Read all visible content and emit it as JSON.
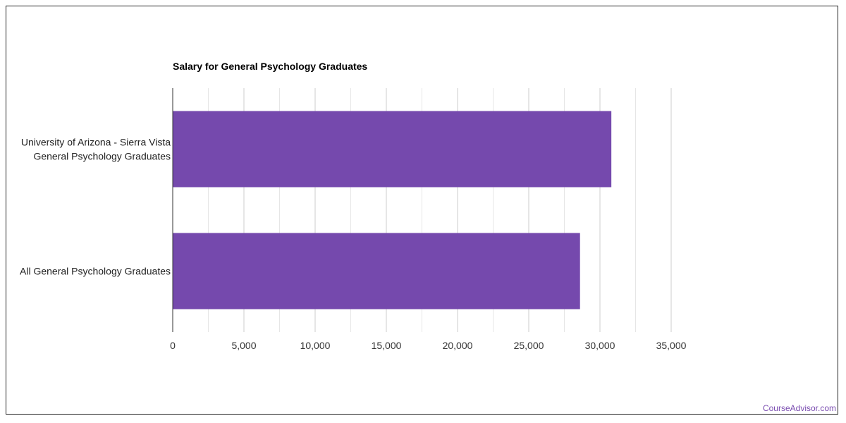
{
  "chart_data": {
    "type": "bar",
    "orientation": "horizontal",
    "title": "Salary for General Psychology Graduates",
    "categories": [
      [
        "University of Arizona - Sierra Vista",
        "General Psychology Graduates"
      ],
      [
        "All General Psychology Graduates"
      ]
    ],
    "values": [
      30800,
      28600
    ],
    "xlim": [
      0,
      35000
    ],
    "xticks": [
      "0",
      "5,000",
      "10,000",
      "15,000",
      "20,000",
      "25,000",
      "30,000",
      "35,000"
    ],
    "xtick_values": [
      0,
      5000,
      10000,
      15000,
      20000,
      25000,
      30000,
      35000
    ],
    "grid": true,
    "bar_color": "#7549ad"
  },
  "watermark": "CourseAdvisor.com"
}
